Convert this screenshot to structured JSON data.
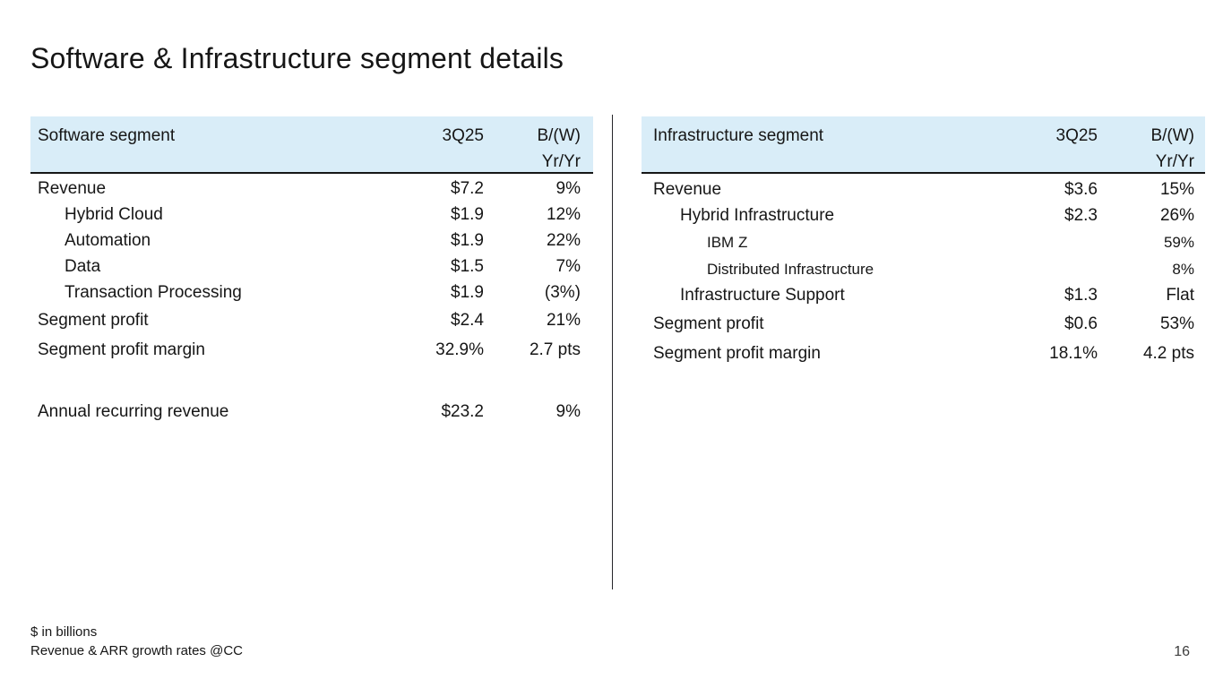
{
  "title": "Software & Infrastructure segment details",
  "colors": {
    "header_bg": "#d9edf8",
    "rule": "#161616",
    "text": "#161616"
  },
  "tables": {
    "software": {
      "header": {
        "name": "Software segment",
        "period": "3Q25",
        "change_line1": "B/(W)",
        "change_line2": "Yr/Yr"
      },
      "rows": [
        {
          "label": "Revenue",
          "value": "$7.2",
          "change": "9%"
        },
        {
          "label": "Hybrid Cloud",
          "value": "$1.9",
          "change": "12%"
        },
        {
          "label": "Automation",
          "value": "$1.9",
          "change": "22%"
        },
        {
          "label": "Data",
          "value": "$1.5",
          "change": "7%"
        },
        {
          "label": "Transaction Processing",
          "value": "$1.9",
          "change": "(3%)"
        },
        {
          "label": "Segment profit",
          "value": "$2.4",
          "change": "21%"
        },
        {
          "label": "Segment profit margin",
          "value": "32.9%",
          "change": "2.7 pts"
        },
        {
          "label": "Annual recurring revenue",
          "value": "$23.2",
          "change": "9%"
        }
      ]
    },
    "infrastructure": {
      "header": {
        "name": "Infrastructure segment",
        "period": "3Q25",
        "change_line1": "B/(W)",
        "change_line2": "Yr/Yr"
      },
      "rows": [
        {
          "label": "Revenue",
          "value": "$3.6",
          "change": "15%"
        },
        {
          "label": "Hybrid Infrastructure",
          "value": "$2.3",
          "change": "26%"
        },
        {
          "label": "IBM Z",
          "value": "",
          "change": "59%"
        },
        {
          "label": "Distributed Infrastructure",
          "value": "",
          "change": "8%"
        },
        {
          "label": "Infrastructure Support",
          "value": "$1.3",
          "change": "Flat"
        },
        {
          "label": "Segment profit",
          "value": "$0.6",
          "change": "53%"
        },
        {
          "label": "Segment profit margin",
          "value": "18.1%",
          "change": "4.2 pts"
        }
      ]
    }
  },
  "footnotes": {
    "line1": "$ in billions",
    "line2": "Revenue & ARR growth rates @CC"
  },
  "page_number": "16"
}
